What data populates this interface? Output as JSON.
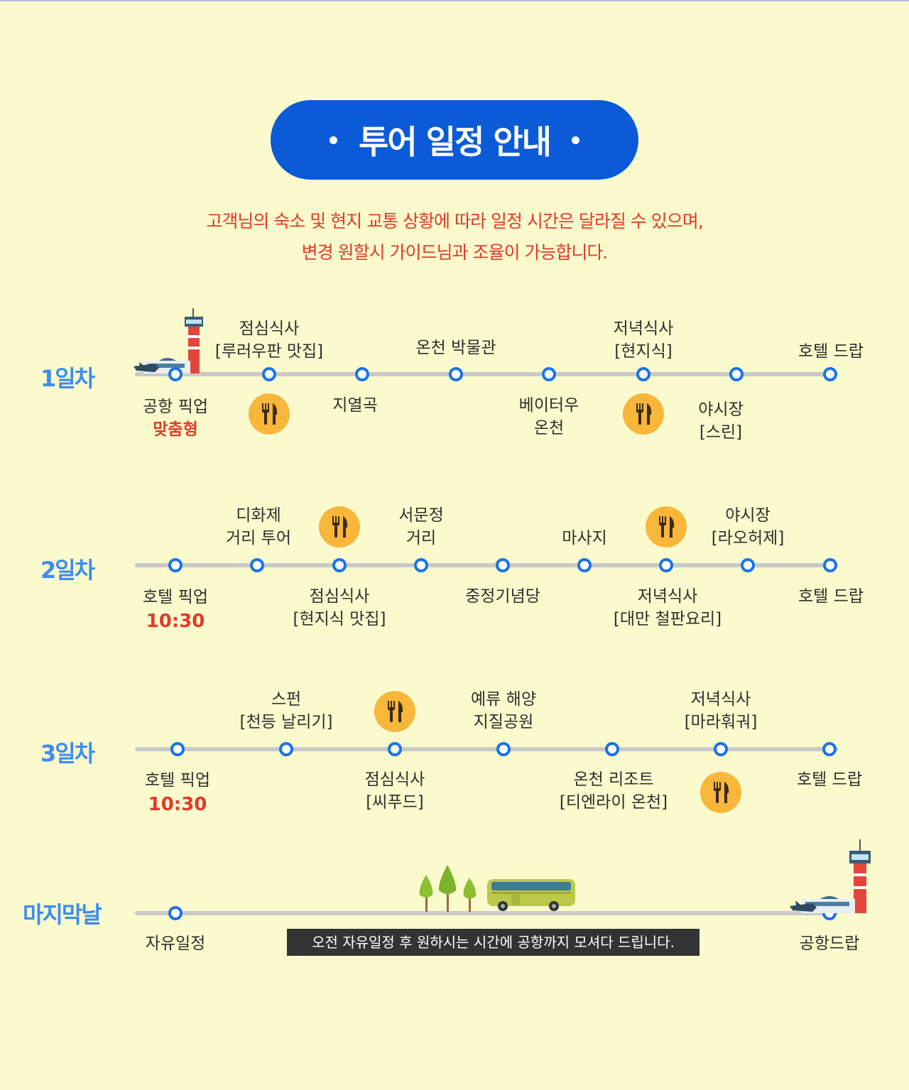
{
  "header": {
    "title": "투어 일정 안내",
    "notice_line1": "고객님의 숙소 및 현지 교통 상황에 따라 일정 시간은 달라질 수 있으며,",
    "notice_line2": "변경 원할시 가이드님과 조율이 가능합니다."
  },
  "colors": {
    "accent": "#0b5ad8",
    "day_label": "#3c8df2",
    "highlight": "#e33a2b",
    "node": "#1a73e8",
    "food_icon_bg": "#f8b63a",
    "background": "#fafacd"
  },
  "day1": {
    "label": "1일차",
    "stops": [
      {
        "below": "공항 픽업",
        "below2": "맞춤형"
      },
      {
        "above": "점심식사",
        "above2": "[루러우판 맛집]"
      },
      {
        "below": "지열곡"
      },
      {
        "above": "온천 박물관"
      },
      {
        "below": "베이터우",
        "below2": "온천"
      },
      {
        "above": "저녁식사",
        "above2": "[현지식]"
      },
      {
        "below": "야시장",
        "below2": "[스린]"
      },
      {
        "above": "호텔 드랍"
      }
    ]
  },
  "day2": {
    "label": "2일차",
    "stops": [
      {
        "below": "호텔 픽업",
        "below2": "10:30"
      },
      {
        "above": "디화제",
        "above2": "거리 투어"
      },
      {
        "below": "점심식사",
        "below2": "[현지식 맛집]"
      },
      {
        "above": "서문정",
        "above2": "거리"
      },
      {
        "below": "중정기념당"
      },
      {
        "above": "마사지"
      },
      {
        "below": "저녁식사",
        "below2": "[대만 철판요리]"
      },
      {
        "above": "야시장",
        "above2": "[라오허제]"
      },
      {
        "below": "호텔 드랍"
      }
    ]
  },
  "day3": {
    "label": "3일차",
    "stops": [
      {
        "below": "호텔 픽업",
        "below2": "10:30"
      },
      {
        "above": "스펀",
        "above2": "[천등 날리기]"
      },
      {
        "below": "점심식사",
        "below2": "[씨푸드]"
      },
      {
        "above": "예류 해양",
        "above2": "지질공원"
      },
      {
        "below": "온천 리조트",
        "below2": "[티엔라이 온천]"
      },
      {
        "above": "저녁식사",
        "above2": "[마라훠궈]"
      },
      {
        "below": "호텔 드랍"
      }
    ]
  },
  "last": {
    "label": "마지막날",
    "start": "자유일정",
    "banner": "오전 자유일정 후 원하시는 시간에 공항까지 모셔다 드립니다.",
    "end": "공항드랍"
  },
  "icons": [
    "airport-icon",
    "fork-knife-icon",
    "tree-icon",
    "bus-icon"
  ]
}
